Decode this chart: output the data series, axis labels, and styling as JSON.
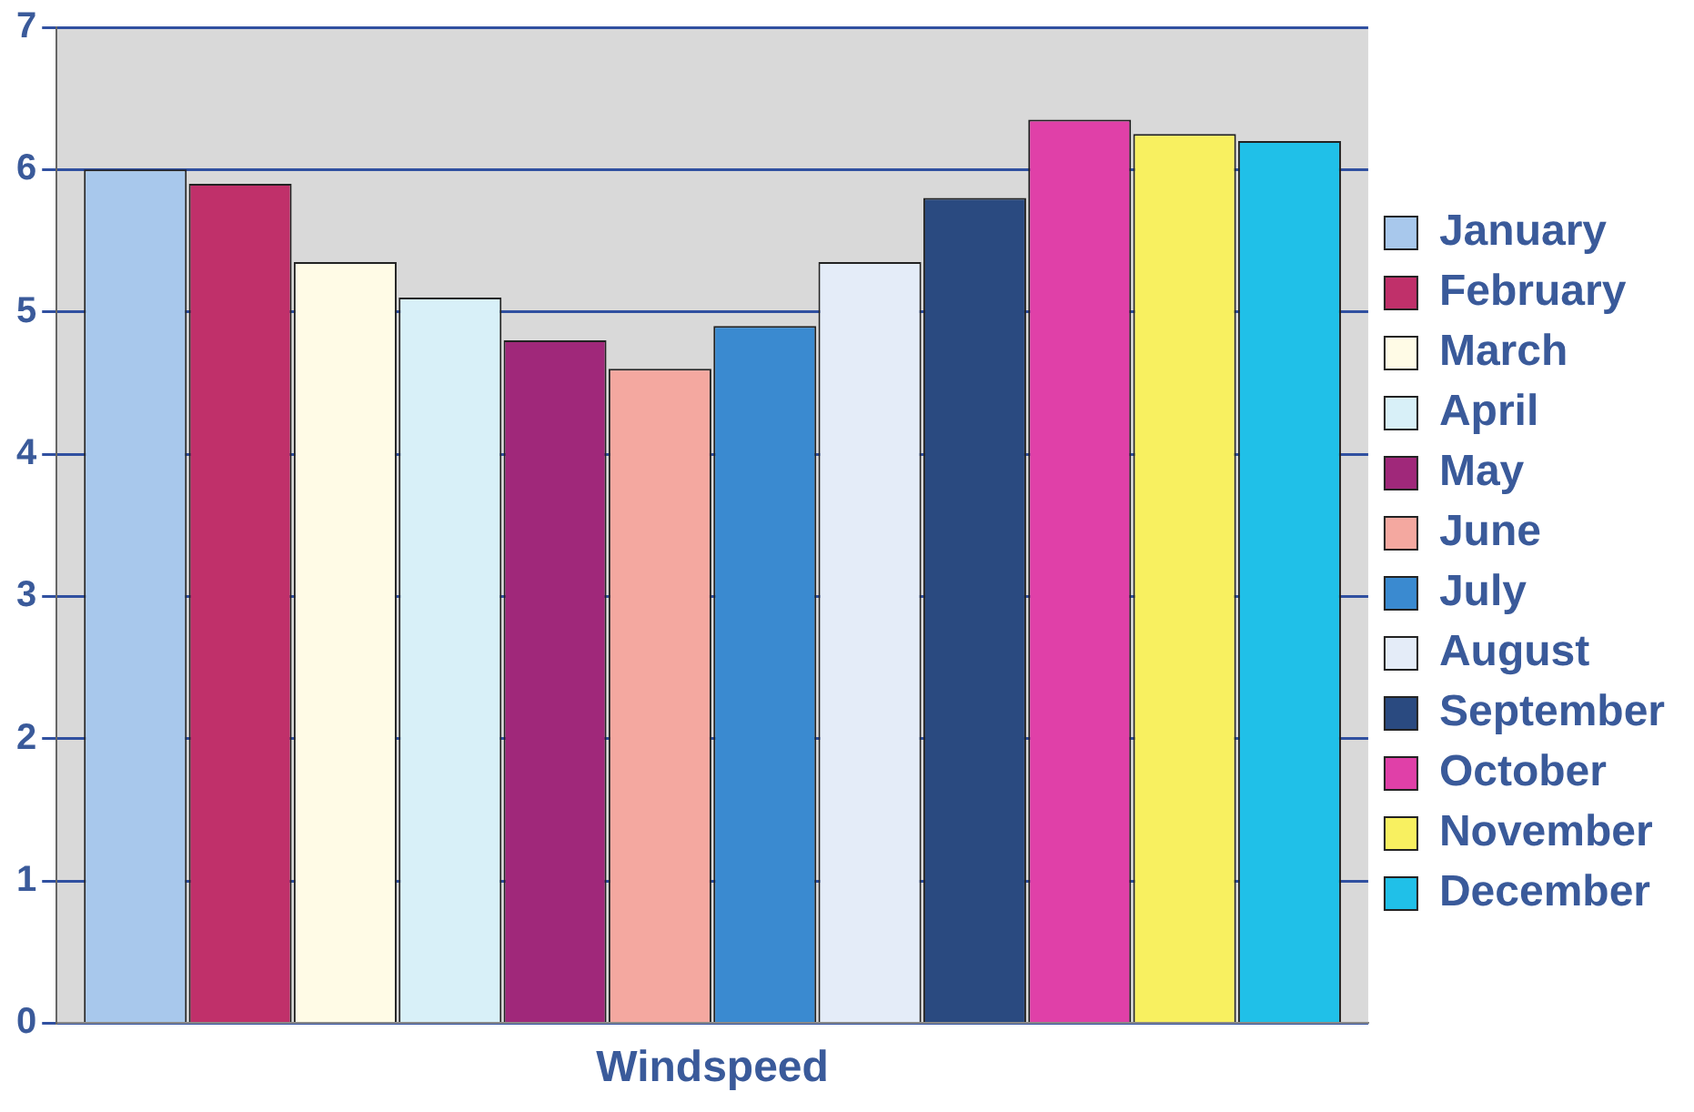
{
  "chart_data": {
    "type": "bar",
    "categories": [
      "Windspeed"
    ],
    "ylim": [
      0,
      7
    ],
    "yticks": [
      0,
      1,
      2,
      3,
      4,
      5,
      6,
      7
    ],
    "grid": "y",
    "legend": "right",
    "series": [
      {
        "name": "January",
        "color": "#a8c8ec",
        "values": [
          6.0
        ]
      },
      {
        "name": "February",
        "color": "#c0306a",
        "values": [
          5.9
        ]
      },
      {
        "name": "March",
        "color": "#fffbe6",
        "values": [
          5.35
        ]
      },
      {
        "name": "April",
        "color": "#d8f0f8",
        "values": [
          5.1
        ]
      },
      {
        "name": "May",
        "color": "#a0287a",
        "values": [
          4.8
        ]
      },
      {
        "name": "June",
        "color": "#f4a8a0",
        "values": [
          4.6
        ]
      },
      {
        "name": "July",
        "color": "#3a8ad0",
        "values": [
          4.9
        ]
      },
      {
        "name": "August",
        "color": "#e4ecf8",
        "values": [
          5.35
        ]
      },
      {
        "name": "September",
        "color": "#2a4a80",
        "values": [
          5.8
        ]
      },
      {
        "name": "October",
        "color": "#e040a8",
        "values": [
          6.35
        ]
      },
      {
        "name": "November",
        "color": "#f8f060",
        "values": [
          6.25
        ]
      },
      {
        "name": "December",
        "color": "#20c0e8",
        "values": [
          6.2
        ]
      }
    ]
  }
}
